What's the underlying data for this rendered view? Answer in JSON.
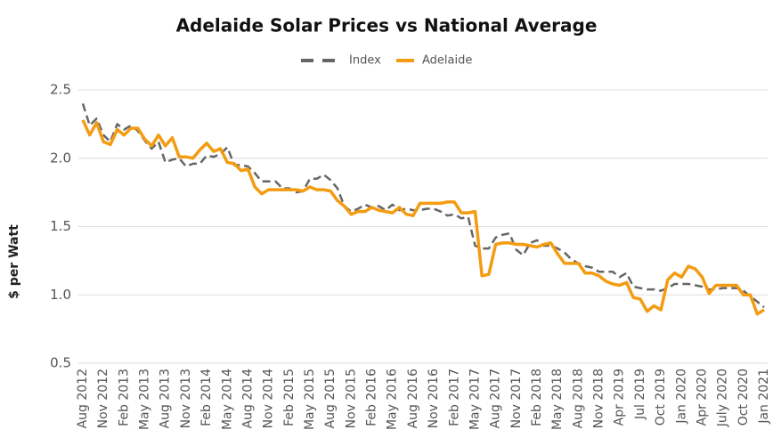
{
  "chart_data": {
    "type": "line",
    "title": "Adelaide Solar Prices vs National Average",
    "y_label": "$ per Watt",
    "categories": [
      "Aug 2012",
      null,
      null,
      "Nov 2012",
      null,
      null,
      "Feb 2013",
      null,
      null,
      "May 2013",
      null,
      null,
      "Aug 2013",
      null,
      null,
      "Nov 2013",
      null,
      null,
      "Feb 2014",
      null,
      null,
      "May 2014",
      null,
      null,
      "Aug 2014",
      null,
      null,
      "Nov 2014",
      null,
      null,
      "Feb 2015",
      null,
      null,
      "May 2015",
      null,
      null,
      "Aug 2015",
      null,
      null,
      "Nov 2015",
      null,
      null,
      "Feb 2016",
      null,
      null,
      "May 2016",
      null,
      null,
      "Aug 2016",
      null,
      null,
      "Nov 2016",
      null,
      null,
      "Feb 2017",
      null,
      null,
      "May 2017",
      null,
      null,
      "Aug 2017",
      null,
      null,
      "Nov 2017",
      null,
      null,
      "Feb 2018",
      null,
      null,
      "May 2018",
      null,
      null,
      "Aug 2018",
      null,
      null,
      "Nov 2018",
      null,
      null,
      "Apr 2019",
      null,
      null,
      "Jul 2019",
      null,
      null,
      "Oct 2019",
      null,
      null,
      "Jan 2020",
      null,
      null,
      "Apr 2020",
      null,
      null,
      "July 2020",
      null,
      null,
      "Oct 2020",
      null,
      null,
      "Jan 2021"
    ],
    "series": [
      {
        "name": "Index",
        "color": "#666666",
        "dashed": true,
        "values": [
          2.4,
          2.24,
          2.29,
          2.17,
          2.12,
          2.25,
          2.21,
          2.24,
          2.2,
          2.13,
          2.07,
          2.12,
          1.97,
          1.99,
          2.0,
          1.94,
          1.96,
          1.96,
          2.02,
          2.01,
          2.03,
          2.08,
          1.95,
          1.95,
          1.94,
          1.89,
          1.83,
          1.83,
          1.83,
          1.78,
          1.78,
          1.75,
          1.76,
          1.85,
          1.85,
          1.88,
          1.84,
          1.78,
          1.65,
          1.61,
          1.63,
          1.66,
          1.64,
          1.65,
          1.62,
          1.66,
          1.62,
          1.63,
          1.62,
          1.62,
          1.63,
          1.63,
          1.61,
          1.58,
          1.59,
          1.56,
          1.57,
          1.36,
          1.34,
          1.34,
          1.42,
          1.44,
          1.45,
          1.33,
          1.29,
          1.38,
          1.4,
          1.36,
          1.36,
          1.34,
          1.31,
          1.26,
          1.23,
          1.21,
          1.2,
          1.17,
          1.17,
          1.17,
          1.13,
          1.16,
          1.06,
          1.05,
          1.04,
          1.04,
          1.03,
          1.05,
          1.08,
          1.08,
          1.08,
          1.07,
          1.06,
          1.04,
          1.04,
          1.05,
          1.05,
          1.05,
          1.03,
          0.99,
          0.95,
          0.91
        ]
      },
      {
        "name": "Adelaide",
        "color": "#f39c12",
        "dashed": false,
        "values": [
          2.28,
          2.17,
          2.26,
          2.12,
          2.1,
          2.21,
          2.17,
          2.22,
          2.22,
          2.14,
          2.09,
          2.17,
          2.09,
          2.15,
          2.01,
          2.01,
          2.0,
          2.06,
          2.11,
          2.05,
          2.07,
          1.97,
          1.96,
          1.91,
          1.92,
          1.79,
          1.74,
          1.77,
          1.77,
          1.77,
          1.77,
          1.77,
          1.76,
          1.79,
          1.77,
          1.77,
          1.76,
          1.69,
          1.65,
          1.59,
          1.61,
          1.61,
          1.64,
          1.62,
          1.61,
          1.6,
          1.64,
          1.59,
          1.58,
          1.67,
          1.67,
          1.67,
          1.67,
          1.68,
          1.68,
          1.6,
          1.6,
          1.61,
          1.14,
          1.15,
          1.37,
          1.38,
          1.38,
          1.37,
          1.37,
          1.36,
          1.35,
          1.37,
          1.38,
          1.3,
          1.23,
          1.23,
          1.23,
          1.16,
          1.16,
          1.14,
          1.1,
          1.08,
          1.07,
          1.09,
          0.98,
          0.97,
          0.88,
          0.92,
          0.89,
          1.11,
          1.16,
          1.13,
          1.21,
          1.19,
          1.13,
          1.01,
          1.07,
          1.07,
          1.07,
          1.07,
          1.0,
          1.0,
          0.86,
          0.89
        ]
      }
    ],
    "ylim": [
      0.5,
      2.5
    ],
    "yticks": [
      0.5,
      {
        "value": 1,
        "label": "1.0"
      },
      1.5,
      {
        "value": 2,
        "label": "2.0"
      },
      2.5
    ],
    "grid": true,
    "legend": "top"
  }
}
